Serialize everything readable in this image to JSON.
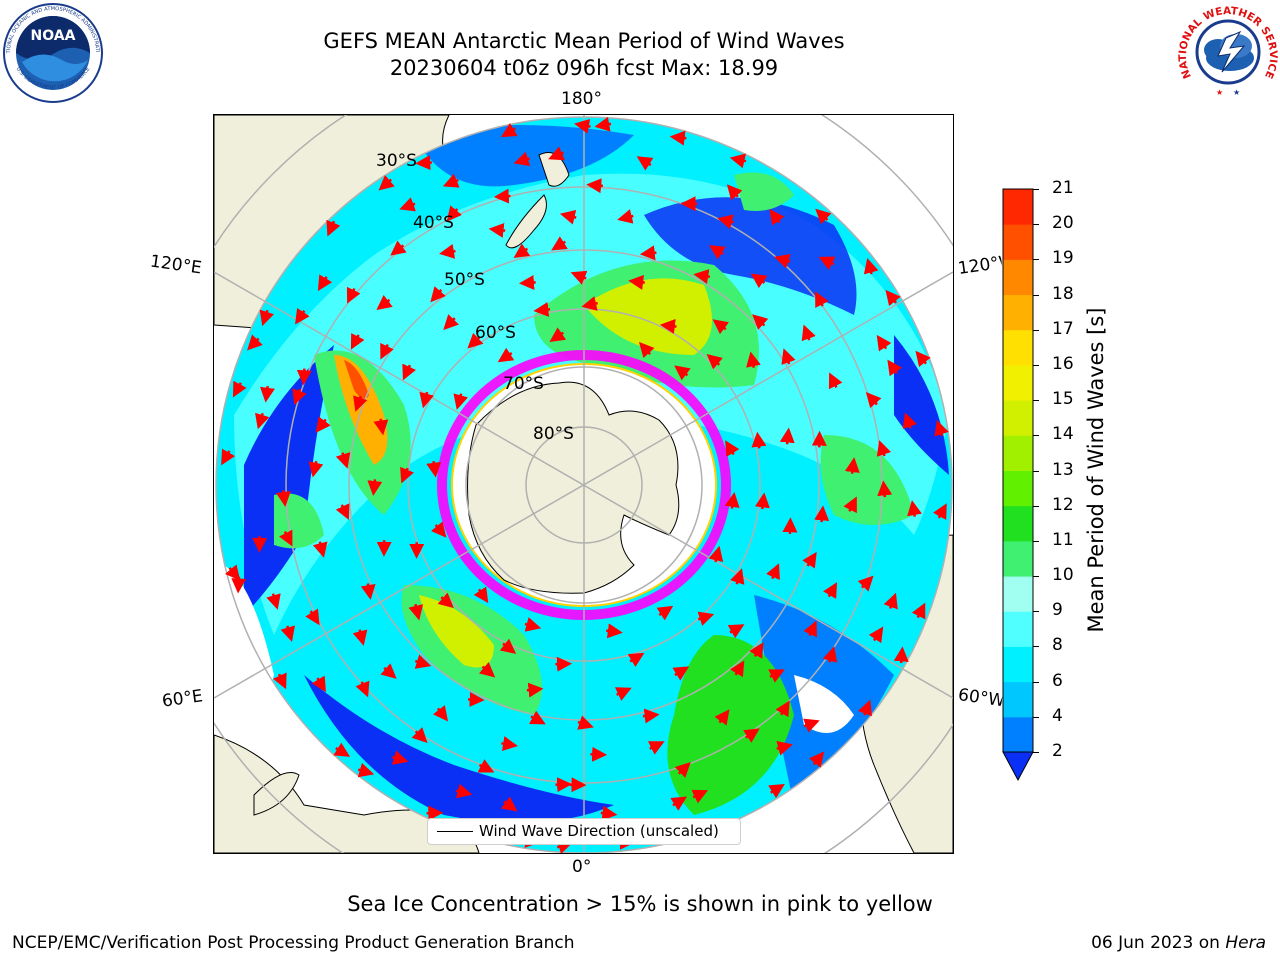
{
  "title_line1": "GEFS MEAN Antarctic Mean Period of Wind Waves",
  "title_line2": "20230604 t06z 096h fcst   Max: 18.99",
  "logos": {
    "left": "noaa-logo",
    "right": "nws-logo",
    "noaa_text": "NOAA",
    "noaa_ring": "NATIONAL OCEANIC AND ATMOSPHERIC ADMINISTRATION",
    "noaa_ring_bottom": "U.S. DEPARTMENT OF COMMERCE",
    "nws_ring": "NATIONAL WEATHER SERVICE"
  },
  "map": {
    "projection": "south-polar-stereographic",
    "longitude_labels": {
      "top": "180°",
      "bottom": "0°",
      "left_upper": "120°E",
      "left_lower": "60°E",
      "right_upper": "120°W",
      "right_lower": "60°W"
    },
    "latitude_labels": [
      "30°S",
      "40°S",
      "50°S",
      "60°S",
      "70°S",
      "80°S"
    ],
    "legend_label": "Wind Wave Direction (unscaled)",
    "colors": {
      "land": "#efefdb",
      "ocean_missing": "#ffffff",
      "grid": "#b0b0b0",
      "arrow": "#ff0000",
      "sea_ice_low": "#ff00ff",
      "sea_ice_high": "#ffd200"
    }
  },
  "colorbar": {
    "label": "Mean Period of Wind Waves [s]",
    "ticks": [
      "2",
      "4",
      "6",
      "8",
      "9",
      "10",
      "11",
      "12",
      "13",
      "14",
      "15",
      "16",
      "17",
      "18",
      "19",
      "20",
      "21"
    ],
    "colors": [
      "#0a30f5",
      "#0080ff",
      "#00c8ff",
      "#00f0ff",
      "#50ffff",
      "#a0fff0",
      "#40f070",
      "#20e020",
      "#60f000",
      "#a0f000",
      "#d0f000",
      "#f0f000",
      "#ffe000",
      "#ffb000",
      "#ff8800",
      "#ff5000",
      "#ff2800",
      "#ff0000"
    ],
    "extend": "min"
  },
  "footer_note": "Sea Ice Concentration > 15% is shown in pink to yellow",
  "credit_left": "NCEP/EMC/Verification Post Processing Product Generation Branch",
  "credit_date": "06 Jun 2023 on",
  "credit_host": "Hera"
}
